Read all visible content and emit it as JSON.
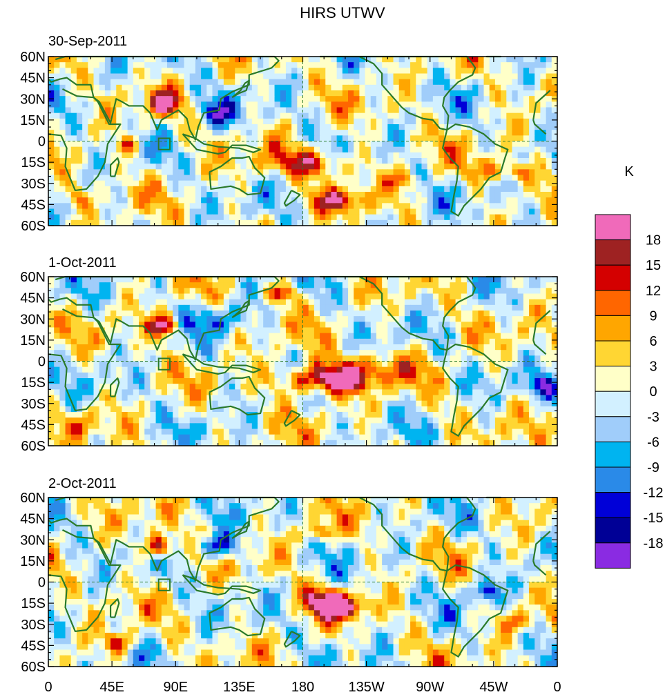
{
  "title": "HIRS UTWV",
  "panels": [
    {
      "date": "30-Sep-2011"
    },
    {
      "date": "1-Oct-2011"
    },
    {
      "date": "2-Oct-2011"
    }
  ],
  "lat_labels": [
    "60N",
    "45N",
    "30N",
    "15N",
    "0",
    "15S",
    "30S",
    "45S",
    "60S"
  ],
  "lon_labels": [
    "0",
    "45E",
    "90E",
    "135E",
    "180",
    "135W",
    "90W",
    "45W",
    "0"
  ],
  "colorbar": {
    "unit": "K",
    "labels": [
      "18",
      "15",
      "12",
      "9",
      "6",
      "3",
      "0",
      "-3",
      "-6",
      "-9",
      "-12",
      "-15",
      "-18"
    ],
    "colors": [
      "#f06aba",
      "#9e2222",
      "#d40000",
      "#ff6600",
      "#ffa600",
      "#ffd633",
      "#ffffc8",
      "#d2f0ff",
      "#a0cdfa",
      "#00b4f0",
      "#2a8ae8",
      "#0000d8",
      "#000096",
      "#8a2be2"
    ]
  },
  "map_colors": {
    "land_outline": "#2a7a2a",
    "box": "#2a7a2a"
  }
}
